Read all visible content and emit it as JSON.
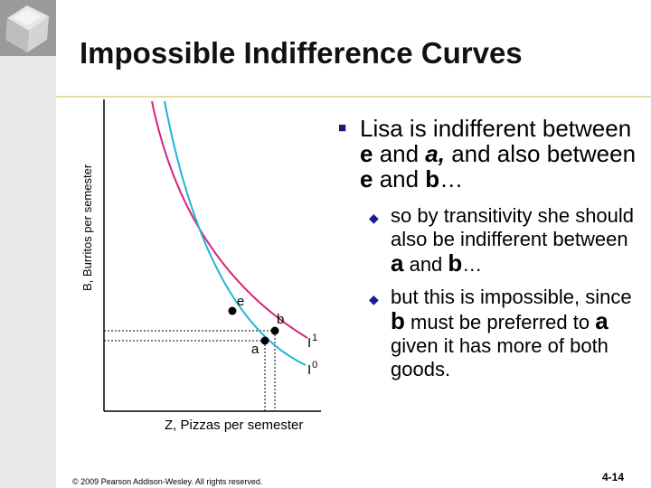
{
  "title": "Impossible Indifference Curves",
  "diagram": {
    "y_axis_label": "B, Burritos per semester",
    "x_axis_label": "Z, Pizzas per semester",
    "point_e": "e",
    "point_a": "a",
    "point_b": "b",
    "curve_i1": "I",
    "curve_i1_sup": "1",
    "curve_i0": "I",
    "curve_i0_sup": "0",
    "colors": {
      "i1_curve": "#d6237e",
      "i0_curve": "#1fb4d6"
    }
  },
  "bullet": {
    "part1": "Lisa is indifferent between ",
    "e1": "e",
    "part2": " and ",
    "a1": "a,",
    "part3": " and also between ",
    "e2": "e",
    "part4": " and ",
    "b1": "b",
    "part5": "…"
  },
  "sub1": {
    "part1": "so by transitivity she should also be indifferent between ",
    "a": "a",
    "part2": " and ",
    "b": "b",
    "part3": "…"
  },
  "sub2": {
    "part1": "but this is impossible, since ",
    "b": "b",
    "part2": " must be preferred to ",
    "a": "a",
    "part3": " given it has more of both goods."
  },
  "footer": {
    "copyright": "© 2009 Pearson Addison-Wesley. All rights reserved.",
    "page": "4-14"
  }
}
